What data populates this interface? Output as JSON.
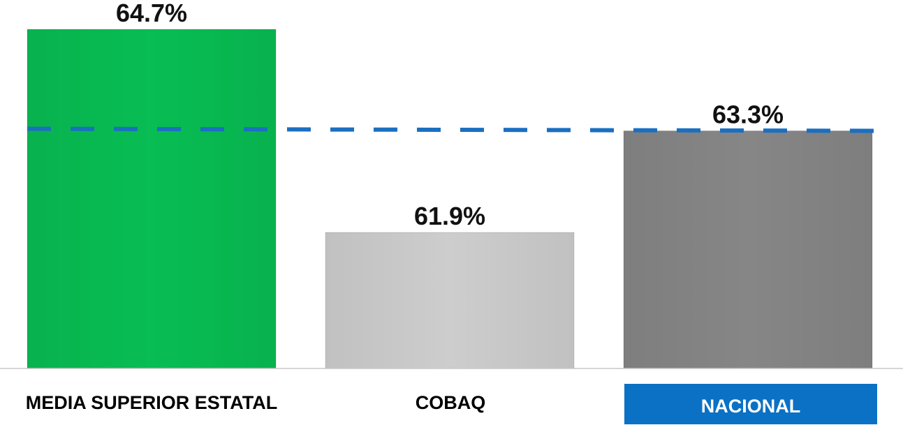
{
  "chart_data": {
    "type": "bar",
    "categories": [
      "MEDIA SUPERIOR ESTATAL",
      "COBAQ",
      "NACIONAL"
    ],
    "values": [
      64.7,
      61.9,
      63.3
    ],
    "value_labels": [
      "64.7%",
      "61.9%",
      "63.3%"
    ],
    "bar_colors": [
      "#08bd53",
      "#cdcdcd",
      "#868686"
    ],
    "highlighted_category_index": 2,
    "highlight_color": "#0b71c4",
    "reference_line": {
      "value": 63.3,
      "style": "dashed",
      "color": "#1b6fc0"
    },
    "title": "",
    "xlabel": "",
    "ylabel": "",
    "ylim": [
      59,
      65
    ],
    "grid": false,
    "legend": "none"
  }
}
